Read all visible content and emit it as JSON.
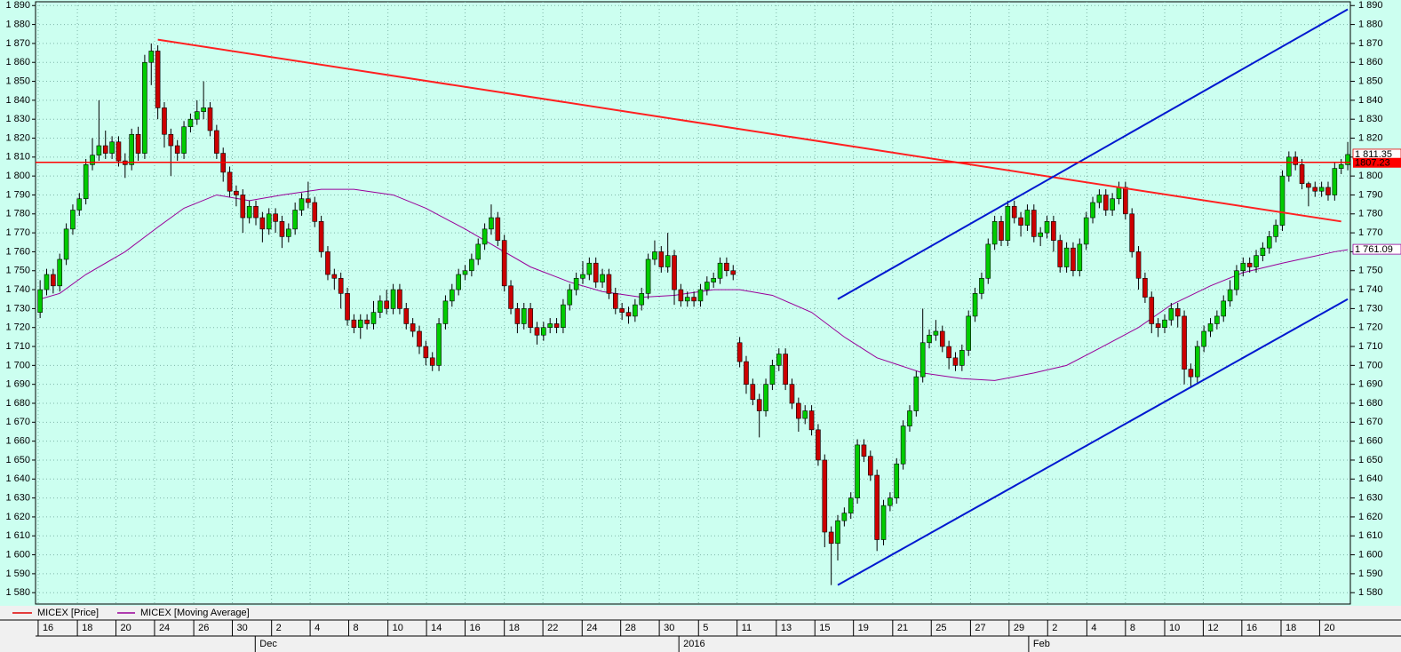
{
  "chart_data": {
    "type": "candlestick",
    "series": [
      {
        "name": "MICEX [Price]",
        "color": "#e00000",
        "up_color": "#00cc00",
        "down_color": "#cc0000",
        "last_label": "1 811.35",
        "open": [
          1728,
          1740,
          1748,
          1742,
          1756,
          1772,
          1782,
          1788,
          1806,
          1811,
          1816,
          1812,
          1818,
          1808,
          1806,
          1822,
          1812,
          1860,
          1866,
          1836,
          1822,
          1816,
          1812,
          1826,
          1830,
          1834,
          1836,
          1824,
          1812,
          1802,
          1792,
          1790,
          1778,
          1784,
          1778,
          1772,
          1780,
          1776,
          1768,
          1772,
          1782,
          1788,
          1786,
          1776,
          1760,
          1748,
          1746,
          1738,
          1724,
          1720,
          1724,
          1722,
          1728,
          1734,
          1730,
          1740,
          1730,
          1722,
          1718,
          1710,
          1704,
          1700,
          1722,
          1734,
          1740,
          1748,
          1750,
          1756,
          1764,
          1772,
          1778,
          1766,
          1742,
          1730,
          1722,
          1730,
          1720,
          1716,
          1720,
          1722,
          1720,
          1732,
          1740,
          1746,
          1748,
          1754,
          1744,
          1748,
          1738,
          1730,
          1728,
          1726,
          1732,
          1738,
          1756,
          1760,
          1752,
          1758,
          1740,
          1734,
          1736,
          1734,
          1740,
          1744,
          1746,
          1754,
          1750,
          1712,
          1702,
          1690,
          1682,
          1676,
          1690,
          1700,
          1706,
          1690,
          1680,
          1672,
          1676,
          1666,
          1650,
          1612,
          1606,
          1618,
          1622,
          1630,
          1658,
          1652,
          1642,
          1608,
          1626,
          1630,
          1648,
          1668,
          1676,
          1694,
          1712,
          1716,
          1718,
          1710,
          1704,
          1700,
          1708,
          1726,
          1738,
          1746,
          1764,
          1776,
          1766,
          1784,
          1778,
          1774,
          1782,
          1768,
          1770,
          1776,
          1766,
          1752,
          1762,
          1750,
          1764,
          1778,
          1786,
          1790,
          1782,
          1788,
          1794,
          1780,
          1760,
          1746,
          1736,
          1722,
          1720,
          1724,
          1730,
          1726,
          1698,
          1694,
          1710,
          1718,
          1722,
          1726,
          1734,
          1740,
          1750,
          1754,
          1752,
          1758,
          1762,
          1768,
          1774,
          1800,
          1810,
          1806,
          1796,
          1794,
          1792,
          1794,
          1790,
          1804,
          1806
        ],
        "high": [
          1745,
          1751,
          1751,
          1759,
          1775,
          1785,
          1791,
          1809,
          1820,
          1840,
          1824,
          1821,
          1821,
          1812,
          1825,
          1826,
          1864,
          1870,
          1869,
          1839,
          1825,
          1819,
          1829,
          1833,
          1840,
          1850,
          1839,
          1827,
          1815,
          1805,
          1795,
          1793,
          1787,
          1787,
          1781,
          1783,
          1783,
          1779,
          1775,
          1786,
          1791,
          1797,
          1789,
          1779,
          1763,
          1751,
          1749,
          1741,
          1727,
          1727,
          1727,
          1734,
          1737,
          1740,
          1743,
          1743,
          1733,
          1725,
          1721,
          1713,
          1707,
          1725,
          1737,
          1743,
          1751,
          1753,
          1759,
          1767,
          1775,
          1785,
          1781,
          1769,
          1745,
          1733,
          1733,
          1733,
          1723,
          1723,
          1725,
          1725,
          1735,
          1743,
          1749,
          1755,
          1757,
          1757,
          1751,
          1751,
          1741,
          1733,
          1731,
          1735,
          1741,
          1759,
          1766,
          1763,
          1770,
          1761,
          1743,
          1739,
          1739,
          1743,
          1747,
          1749,
          1757,
          1757,
          1753,
          1715,
          1705,
          1693,
          1685,
          1693,
          1703,
          1709,
          1709,
          1693,
          1683,
          1679,
          1679,
          1669,
          1653,
          1615,
          1621,
          1625,
          1633,
          1661,
          1661,
          1655,
          1645,
          1629,
          1633,
          1651,
          1671,
          1679,
          1697,
          1730,
          1719,
          1724,
          1721,
          1713,
          1707,
          1711,
          1729,
          1741,
          1749,
          1767,
          1779,
          1779,
          1787,
          1787,
          1781,
          1785,
          1785,
          1773,
          1779,
          1779,
          1769,
          1765,
          1765,
          1767,
          1781,
          1789,
          1793,
          1793,
          1791,
          1797,
          1797,
          1783,
          1763,
          1749,
          1739,
          1725,
          1727,
          1733,
          1733,
          1729,
          1701,
          1713,
          1721,
          1725,
          1729,
          1737,
          1745,
          1753,
          1757,
          1757,
          1761,
          1765,
          1771,
          1777,
          1803,
          1813,
          1813,
          1809,
          1797,
          1797,
          1797,
          1797,
          1807,
          1809,
          1818
        ],
        "low": [
          1725,
          1737,
          1738,
          1739,
          1753,
          1769,
          1779,
          1785,
          1803,
          1808,
          1809,
          1809,
          1805,
          1799,
          1803,
          1808,
          1809,
          1848,
          1830,
          1815,
          1800,
          1808,
          1809,
          1823,
          1827,
          1830,
          1821,
          1809,
          1797,
          1789,
          1784,
          1770,
          1775,
          1774,
          1765,
          1769,
          1770,
          1762,
          1765,
          1769,
          1779,
          1783,
          1773,
          1757,
          1745,
          1740,
          1730,
          1721,
          1717,
          1714,
          1719,
          1719,
          1725,
          1727,
          1727,
          1727,
          1719,
          1715,
          1706,
          1700,
          1697,
          1697,
          1719,
          1731,
          1737,
          1745,
          1747,
          1753,
          1761,
          1769,
          1763,
          1739,
          1727,
          1717,
          1719,
          1717,
          1711,
          1713,
          1717,
          1717,
          1717,
          1729,
          1737,
          1743,
          1745,
          1741,
          1741,
          1735,
          1727,
          1724,
          1722,
          1723,
          1729,
          1735,
          1753,
          1749,
          1749,
          1732,
          1731,
          1731,
          1731,
          1731,
          1737,
          1741,
          1743,
          1747,
          1745,
          1699,
          1685,
          1679,
          1662,
          1673,
          1687,
          1697,
          1687,
          1677,
          1665,
          1669,
          1663,
          1647,
          1604,
          1584,
          1597,
          1615,
          1619,
          1627,
          1649,
          1639,
          1602,
          1605,
          1623,
          1627,
          1645,
          1665,
          1673,
          1691,
          1709,
          1713,
          1707,
          1698,
          1697,
          1697,
          1705,
          1723,
          1735,
          1743,
          1761,
          1763,
          1763,
          1775,
          1768,
          1771,
          1765,
          1763,
          1767,
          1760,
          1749,
          1749,
          1747,
          1747,
          1761,
          1775,
          1783,
          1779,
          1779,
          1785,
          1777,
          1757,
          1740,
          1733,
          1717,
          1715,
          1717,
          1721,
          1720,
          1690,
          1688,
          1691,
          1707,
          1715,
          1719,
          1723,
          1731,
          1737,
          1747,
          1749,
          1749,
          1755,
          1759,
          1765,
          1771,
          1797,
          1803,
          1793,
          1784,
          1789,
          1789,
          1787,
          1787,
          1801,
          1803
        ],
        "close": [
          1740,
          1748,
          1742,
          1756,
          1772,
          1782,
          1788,
          1806,
          1811,
          1816,
          1812,
          1818,
          1808,
          1806,
          1822,
          1812,
          1860,
          1866,
          1836,
          1822,
          1816,
          1812,
          1826,
          1830,
          1834,
          1836,
          1824,
          1812,
          1802,
          1792,
          1790,
          1778,
          1784,
          1778,
          1772,
          1780,
          1776,
          1768,
          1772,
          1782,
          1788,
          1786,
          1776,
          1760,
          1748,
          1746,
          1738,
          1724,
          1720,
          1724,
          1722,
          1728,
          1734,
          1730,
          1740,
          1730,
          1722,
          1718,
          1710,
          1704,
          1700,
          1722,
          1734,
          1740,
          1748,
          1750,
          1756,
          1764,
          1772,
          1778,
          1766,
          1742,
          1730,
          1722,
          1730,
          1720,
          1716,
          1720,
          1722,
          1720,
          1732,
          1740,
          1746,
          1748,
          1754,
          1744,
          1748,
          1738,
          1730,
          1728,
          1726,
          1732,
          1738,
          1756,
          1760,
          1752,
          1758,
          1740,
          1734,
          1736,
          1734,
          1740,
          1744,
          1746,
          1754,
          1750,
          1748,
          1702,
          1690,
          1682,
          1676,
          1690,
          1700,
          1706,
          1690,
          1680,
          1672,
          1676,
          1666,
          1650,
          1612,
          1606,
          1618,
          1622,
          1630,
          1658,
          1652,
          1642,
          1608,
          1626,
          1630,
          1648,
          1668,
          1676,
          1694,
          1712,
          1716,
          1718,
          1710,
          1704,
          1700,
          1708,
          1726,
          1738,
          1746,
          1764,
          1776,
          1766,
          1784,
          1778,
          1774,
          1782,
          1768,
          1770,
          1776,
          1766,
          1752,
          1762,
          1750,
          1764,
          1778,
          1786,
          1790,
          1782,
          1788,
          1794,
          1780,
          1760,
          1746,
          1736,
          1722,
          1720,
          1724,
          1730,
          1726,
          1698,
          1694,
          1710,
          1718,
          1722,
          1726,
          1734,
          1740,
          1750,
          1754,
          1752,
          1758,
          1762,
          1768,
          1774,
          1800,
          1810,
          1806,
          1796,
          1794,
          1792,
          1794,
          1790,
          1804,
          1806,
          1811.35
        ]
      },
      {
        "name": "MICEX [Moving Average]",
        "type": "line",
        "color": "#990099",
        "last_label": "1 761.09",
        "x": [
          0,
          3,
          7,
          13,
          18,
          22,
          27,
          32,
          37,
          43,
          48,
          54,
          59,
          65,
          70,
          75,
          81,
          86,
          92,
          97,
          103,
          107,
          112,
          118,
          123,
          128,
          135,
          141,
          146,
          152,
          157,
          162,
          168,
          173,
          179,
          184,
          190,
          194,
          198,
          200
        ],
        "values": [
          1735,
          1738,
          1748,
          1760,
          1773,
          1783,
          1790,
          1787,
          1790,
          1793,
          1793,
          1790,
          1783,
          1772,
          1762,
          1752,
          1744,
          1739,
          1736,
          1737,
          1740,
          1740,
          1737,
          1728,
          1715,
          1704,
          1696,
          1693,
          1692,
          1696,
          1700,
          1709,
          1720,
          1732,
          1742,
          1749,
          1754,
          1757,
          1760,
          1761.09
        ]
      }
    ],
    "trendlines": [
      {
        "color": "#ff2020",
        "x": [
          18,
          199
        ],
        "y": [
          1872,
          1776
        ]
      },
      {
        "color": "#0018d0",
        "x": [
          122,
          200
        ],
        "y": [
          1735,
          1888
        ]
      },
      {
        "color": "#0018d0",
        "x": [
          122,
          200
        ],
        "y": [
          1584,
          1735
        ]
      }
    ],
    "hline": {
      "value": 1807.23,
      "color": "#ff0000"
    },
    "xlim": [
      -0.7,
      200.4
    ],
    "ylim": [
      1574,
      1892
    ],
    "grid": true,
    "xticks": [
      {
        "value": -0.3,
        "label": "16"
      },
      {
        "value": 5.7,
        "label": "18"
      },
      {
        "value": 11.6,
        "label": "20"
      },
      {
        "value": 17.5,
        "label": "24"
      },
      {
        "value": 23.5,
        "label": "26"
      },
      {
        "value": 29.4,
        "label": "30"
      },
      {
        "value": 35.4,
        "label": "2"
      },
      {
        "value": 41.3,
        "label": "4"
      },
      {
        "value": 47.2,
        "label": "8"
      },
      {
        "value": 53.2,
        "label": "10"
      },
      {
        "value": 59.1,
        "label": "14"
      },
      {
        "value": 65.0,
        "label": "16"
      },
      {
        "value": 71.0,
        "label": "18"
      },
      {
        "value": 76.9,
        "label": "22"
      },
      {
        "value": 82.9,
        "label": "24"
      },
      {
        "value": 88.8,
        "label": "28"
      },
      {
        "value": 94.7,
        "label": "30"
      },
      {
        "value": 100.7,
        "label": "5"
      },
      {
        "value": 106.6,
        "label": "11"
      },
      {
        "value": 112.6,
        "label": "13"
      },
      {
        "value": 118.5,
        "label": "15"
      },
      {
        "value": 124.4,
        "label": "19"
      },
      {
        "value": 130.4,
        "label": "21"
      },
      {
        "value": 136.3,
        "label": "25"
      },
      {
        "value": 142.3,
        "label": "27"
      },
      {
        "value": 148.2,
        "label": "29"
      },
      {
        "value": 154.1,
        "label": "2"
      },
      {
        "value": 160.1,
        "label": "4"
      },
      {
        "value": 166.0,
        "label": "8"
      },
      {
        "value": 172.0,
        "label": "10"
      },
      {
        "value": 177.9,
        "label": "12"
      },
      {
        "value": 183.8,
        "label": "16"
      },
      {
        "value": 189.8,
        "label": "18"
      },
      {
        "value": 195.7,
        "label": "20"
      }
    ],
    "xticks_major": [
      {
        "value": 32.9,
        "label": "Dec"
      },
      {
        "value": 97.7,
        "label": "2016"
      },
      {
        "value": 151.2,
        "label": "Feb"
      }
    ],
    "yticks": [
      {
        "value": 1580,
        "label": "1 580"
      },
      {
        "value": 1590,
        "label": "1 590"
      },
      {
        "value": 1600,
        "label": "1 600"
      },
      {
        "value": 1610,
        "label": "1 610"
      },
      {
        "value": 1620,
        "label": "1 620"
      },
      {
        "value": 1630,
        "label": "1 630"
      },
      {
        "value": 1640,
        "label": "1 640"
      },
      {
        "value": 1650,
        "label": "1 650"
      },
      {
        "value": 1660,
        "label": "1 660"
      },
      {
        "value": 1670,
        "label": "1 670"
      },
      {
        "value": 1680,
        "label": "1 680"
      },
      {
        "value": 1690,
        "label": "1 690"
      },
      {
        "value": 1700,
        "label": "1 700"
      },
      {
        "value": 1710,
        "label": "1 710"
      },
      {
        "value": 1720,
        "label": "1 720"
      },
      {
        "value": 1730,
        "label": "1 730"
      },
      {
        "value": 1740,
        "label": "1 740"
      },
      {
        "value": 1750,
        "label": "1 750"
      },
      {
        "value": 1760,
        "label": "1 760"
      },
      {
        "value": 1770,
        "label": "1 770"
      },
      {
        "value": 1780,
        "label": "1 780"
      },
      {
        "value": 1790,
        "label": "1 790"
      },
      {
        "value": 1800,
        "label": "1 800"
      },
      {
        "value": 1810,
        "label": "1 810"
      },
      {
        "value": 1820,
        "label": "1 820"
      },
      {
        "value": 1830,
        "label": "1 830"
      },
      {
        "value": 1840,
        "label": "1 840"
      },
      {
        "value": 1850,
        "label": "1 850"
      },
      {
        "value": 1860,
        "label": "1 860"
      },
      {
        "value": 1870,
        "label": "1 870"
      },
      {
        "value": 1880,
        "label": "1 880"
      },
      {
        "value": 1890,
        "label": "1 890"
      }
    ]
  }
}
